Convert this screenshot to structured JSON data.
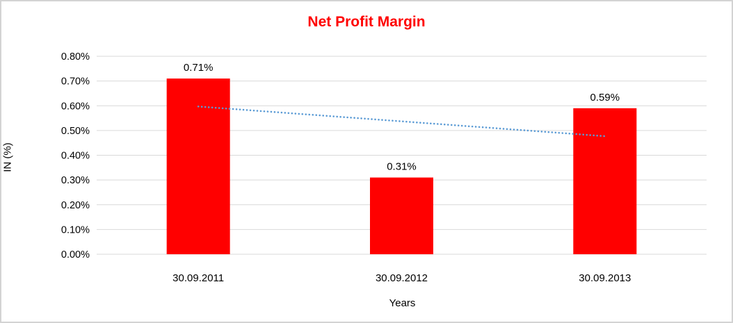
{
  "chart_data": {
    "type": "bar",
    "title": "Net Profit Margin",
    "title_color": "#ff0000",
    "xlabel": "Years",
    "ylabel": "IN (%)",
    "categories": [
      "30.09.2011",
      "30.09.2012",
      "30.09.2013"
    ],
    "values": [
      0.71,
      0.31,
      0.59
    ],
    "data_labels": [
      "0.71%",
      "0.31%",
      "0.59%"
    ],
    "bar_color": "#ff0000",
    "ylim": [
      0.0,
      0.8
    ],
    "ytick_step": 0.1,
    "ytick_labels": [
      "0.00%",
      "0.10%",
      "0.20%",
      "0.30%",
      "0.40%",
      "0.50%",
      "0.60%",
      "0.70%",
      "0.80%"
    ],
    "grid": true,
    "gridline_color": "#d9d9d9",
    "legend": "none",
    "trendline": {
      "type": "linear",
      "style": "dotted",
      "color": "#5b9bd5",
      "start_value": 0.597,
      "end_value": 0.477
    }
  }
}
